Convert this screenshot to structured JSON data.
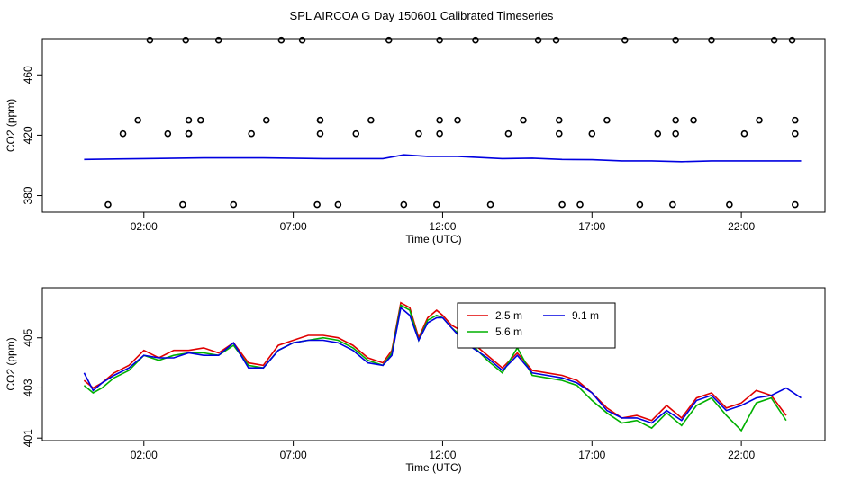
{
  "title": "SPL AIRCOA G  Day 150601  Calibrated Timeseries",
  "colors": {
    "s25": "#e00000",
    "s56": "#00b000",
    "s91": "#0000e0",
    "points": "#000000"
  },
  "chart_data": [
    {
      "type": "line",
      "xlabel": "Time (UTC)",
      "ylabel": "CO2 (ppm)",
      "x_unit": "hours UTC",
      "xlim": [
        -1.4,
        24.8
      ],
      "ylim": [
        369,
        484
      ],
      "x_ticks": [
        2,
        7,
        12,
        17,
        22
      ],
      "x_tick_labels": [
        "02:00",
        "07:00",
        "12:00",
        "17:00",
        "22:00"
      ],
      "y_ticks": [
        380,
        420,
        460
      ],
      "y_tick_labels": [
        "380",
        "420",
        "460"
      ],
      "grid": false,
      "legend": "none",
      "series": [
        {
          "style": "line",
          "values_note": "",
          "x": [
            0,
            2,
            4,
            6,
            8,
            10,
            10.7,
            11.5,
            12.5,
            14,
            15,
            16,
            17,
            18,
            19,
            20,
            21,
            22,
            23,
            24
          ],
          "values": [
            404,
            404.5,
            405,
            405,
            404.5,
            404.5,
            407,
            406,
            406,
            404.5,
            404.8,
            404,
            403.8,
            403,
            403,
            402.5,
            403,
            403,
            403,
            403
          ]
        }
      ],
      "points": {
        "x": [
          0.8,
          1.3,
          1.8,
          2.2,
          2.8,
          3.3,
          3.5,
          3.4,
          3.5,
          3.5,
          3.9,
          4.5,
          5.0,
          5.6,
          6.1,
          6.6,
          7.3,
          7.8,
          7.9,
          7.9,
          7.9,
          8.5,
          9.1,
          9.6,
          10.2,
          10.7,
          11.2,
          11.8,
          11.9,
          11.9,
          11.9,
          12.5,
          13.1,
          13.6,
          14.2,
          14.7,
          15.2,
          15.8,
          15.9,
          15.9,
          16.0,
          16.6,
          17.0,
          17.5,
          18.1,
          18.6,
          19.2,
          19.7,
          19.8,
          19.8,
          19.8,
          20.4,
          21.0,
          21.6,
          22.1,
          22.6,
          23.1,
          23.7,
          23.8,
          23.8,
          23.8
        ],
        "values": [
          374,
          421,
          430,
          483,
          421,
          374,
          421,
          483,
          430,
          421,
          430,
          483,
          374,
          421,
          430,
          483,
          483,
          374,
          430,
          421,
          430,
          374,
          421,
          430,
          483,
          374,
          421,
          374,
          430,
          421,
          483,
          430,
          483,
          374,
          421,
          430,
          483,
          483,
          430,
          421,
          374,
          374,
          421,
          430,
          483,
          374,
          421,
          374,
          421,
          430,
          483,
          430,
          483,
          374,
          421,
          430,
          483,
          483,
          430,
          421,
          374
        ]
      }
    },
    {
      "type": "line",
      "xlabel": "Time (UTC)",
      "ylabel": "CO2 (ppm)",
      "x_unit": "hours UTC",
      "xlim": [
        -1.4,
        24.8
      ],
      "ylim": [
        400.9,
        407.0
      ],
      "x_ticks": [
        2,
        7,
        12,
        17,
        22
      ],
      "x_tick_labels": [
        "02:00",
        "07:00",
        "12:00",
        "17:00",
        "22:00"
      ],
      "y_ticks": [
        401,
        403,
        405
      ],
      "y_tick_labels": [
        "401",
        "403",
        "405"
      ],
      "grid": false,
      "legend": "top-center",
      "series": [
        {
          "name": "2.5 m",
          "color_key": "s25",
          "x": [
            0,
            0.3,
            0.6,
            1.0,
            1.5,
            2.0,
            2.5,
            3.0,
            3.5,
            4.0,
            4.5,
            5.0,
            5.5,
            6.0,
            6.5,
            7.0,
            7.5,
            8.0,
            8.5,
            9.0,
            9.5,
            10.0,
            10.3,
            10.6,
            10.9,
            11.2,
            11.5,
            11.8,
            12.0,
            12.3,
            12.6,
            13.0,
            13.5,
            14.0,
            14.5,
            15.0,
            15.5,
            16.0,
            16.5,
            17.0,
            17.5,
            18.0,
            18.5,
            19.0,
            19.5,
            20.0,
            20.5,
            21.0,
            21.5,
            22.0,
            22.5,
            23.0,
            23.5
          ],
          "values": [
            403.3,
            403.0,
            403.2,
            403.6,
            403.9,
            404.5,
            404.2,
            404.5,
            404.5,
            404.6,
            404.4,
            404.8,
            404.0,
            403.9,
            404.7,
            404.9,
            405.1,
            405.1,
            405.0,
            404.7,
            404.2,
            404.0,
            404.5,
            406.4,
            406.2,
            405.0,
            405.8,
            406.1,
            405.9,
            405.5,
            405.3,
            404.8,
            404.3,
            403.8,
            404.4,
            403.7,
            403.6,
            403.5,
            403.3,
            402.8,
            402.2,
            401.8,
            401.9,
            401.7,
            402.3,
            401.8,
            402.6,
            402.8,
            402.2,
            402.4,
            402.9,
            402.7,
            401.9
          ]
        },
        {
          "name": "5.6 m",
          "color_key": "s56",
          "x": [
            0,
            0.3,
            0.6,
            1.0,
            1.5,
            2.0,
            2.5,
            3.0,
            3.5,
            4.0,
            4.5,
            5.0,
            5.5,
            6.0,
            6.5,
            7.0,
            7.5,
            8.0,
            8.5,
            9.0,
            9.5,
            10.0,
            10.3,
            10.6,
            10.9,
            11.2,
            11.5,
            11.8,
            12.0,
            12.3,
            12.6,
            13.0,
            13.5,
            14.0,
            14.5,
            15.0,
            15.5,
            16.0,
            16.5,
            17.0,
            17.5,
            18.0,
            18.5,
            19.0,
            19.5,
            20.0,
            20.5,
            21.0,
            21.5,
            22.0,
            22.5,
            23.0,
            23.5
          ],
          "values": [
            403.1,
            402.8,
            403.0,
            403.4,
            403.7,
            404.3,
            404.1,
            404.3,
            404.4,
            404.4,
            404.3,
            404.7,
            403.9,
            403.8,
            404.5,
            404.8,
            404.9,
            405.0,
            404.9,
            404.6,
            404.1,
            403.9,
            404.4,
            406.3,
            406.1,
            404.9,
            405.7,
            405.9,
            405.8,
            405.4,
            405.1,
            404.7,
            404.1,
            403.6,
            404.6,
            403.5,
            403.4,
            403.3,
            403.1,
            402.5,
            402.0,
            401.6,
            401.7,
            401.4,
            402.0,
            401.5,
            402.3,
            402.6,
            401.9,
            401.3,
            402.4,
            402.6,
            401.7
          ]
        },
        {
          "name": "9.1 m",
          "color_key": "s91",
          "x": [
            0,
            0.3,
            0.6,
            1.0,
            1.5,
            2.0,
            2.5,
            3.0,
            3.5,
            4.0,
            4.5,
            5.0,
            5.5,
            6.0,
            6.5,
            7.0,
            7.5,
            8.0,
            8.5,
            9.0,
            9.5,
            10.0,
            10.3,
            10.6,
            10.9,
            11.2,
            11.5,
            11.8,
            12.0,
            12.3,
            12.6,
            13.0,
            13.5,
            14.0,
            14.5,
            15.0,
            15.5,
            16.0,
            16.5,
            17.0,
            17.5,
            18.0,
            18.5,
            19.0,
            19.5,
            20.0,
            20.5,
            21.0,
            21.5,
            22.0,
            22.5,
            23.0,
            23.5,
            24.0
          ],
          "values": [
            403.6,
            402.9,
            403.2,
            403.5,
            403.8,
            404.3,
            404.2,
            404.2,
            404.4,
            404.3,
            404.3,
            404.8,
            403.8,
            403.8,
            404.5,
            404.8,
            404.9,
            404.9,
            404.8,
            404.5,
            404.0,
            403.9,
            404.3,
            406.2,
            405.9,
            404.9,
            405.6,
            405.8,
            405.8,
            405.4,
            405.0,
            404.6,
            404.2,
            403.7,
            404.3,
            403.6,
            403.5,
            403.4,
            403.2,
            402.8,
            402.1,
            401.8,
            401.8,
            401.6,
            402.1,
            401.7,
            402.5,
            402.7,
            402.1,
            402.3,
            402.6,
            402.7,
            403.0,
            402.6
          ]
        }
      ]
    }
  ]
}
